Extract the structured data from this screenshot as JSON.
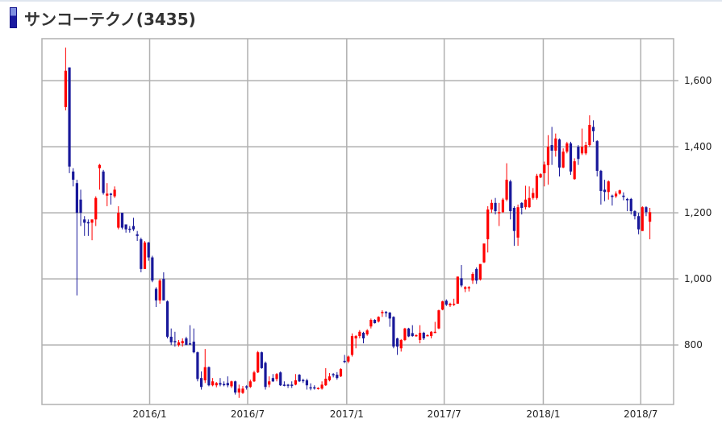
{
  "header": {
    "title": "サンコーテクノ(3435)",
    "icon": "bar-marker-icon"
  },
  "colors": {
    "up": "#ff0000",
    "down": "#18189a",
    "grid": "#b0b0b0"
  },
  "chart_data": {
    "type": "candlestick",
    "title": "サンコーテクノ(3435)",
    "xlabel": "",
    "ylabel": "",
    "interval": "weekly",
    "ylim": [
      620,
      1727
    ],
    "xlim": [
      "2015-06-15",
      "2018-08-31"
    ],
    "grid": true,
    "yaxis_side": "right",
    "y_ticks": [
      800,
      1000,
      1200,
      1400,
      1600
    ],
    "y_tick_labels": [
      "800",
      "1,000",
      "1,200",
      "1,400",
      "1,600"
    ],
    "x_ticks": [
      "2016-01-01",
      "2016-07-01",
      "2017-01-01",
      "2017-07-01",
      "2018-01-01",
      "2018-07-01"
    ],
    "x_tick_labels": [
      "2016/1",
      "2016/7",
      "2017/1",
      "2017/7",
      "2018/1",
      "2018/7"
    ],
    "columns": [
      "date",
      "open",
      "high",
      "low",
      "close"
    ],
    "candles": [
      [
        "2015-07-27",
        1520,
        1700,
        1510,
        1630
      ],
      [
        "2015-08-03",
        1640,
        1640,
        1320,
        1340
      ],
      [
        "2015-08-10",
        1325,
        1335,
        1280,
        1300
      ],
      [
        "2015-08-17",
        1290,
        1300,
        950,
        1200
      ],
      [
        "2015-08-24",
        1240,
        1270,
        1160,
        1200
      ],
      [
        "2015-08-31",
        1180,
        1190,
        1130,
        1170
      ],
      [
        "2015-09-07",
        1172,
        1180,
        1130,
        1168
      ],
      [
        "2015-09-14",
        1170,
        1180,
        1117,
        1180
      ],
      [
        "2015-09-21",
        1180,
        1250,
        1160,
        1245
      ],
      [
        "2015-09-28",
        1335,
        1348,
        1270,
        1345
      ],
      [
        "2015-10-05",
        1325,
        1330,
        1255,
        1260
      ],
      [
        "2015-10-12",
        1252,
        1290,
        1220,
        1258
      ],
      [
        "2015-10-19",
        1258,
        1260,
        1225,
        1255
      ],
      [
        "2015-10-26",
        1250,
        1280,
        1245,
        1270
      ],
      [
        "2015-11-02",
        1155,
        1220,
        1150,
        1200
      ],
      [
        "2015-11-09",
        1200,
        1200,
        1150,
        1155
      ],
      [
        "2015-11-16",
        1165,
        1165,
        1140,
        1150
      ],
      [
        "2015-11-23",
        1152,
        1160,
        1140,
        1150
      ],
      [
        "2015-11-30",
        1160,
        1185,
        1145,
        1150
      ],
      [
        "2015-12-07",
        1135,
        1145,
        1115,
        1130
      ],
      [
        "2015-12-14",
        1120,
        1125,
        1020,
        1030
      ],
      [
        "2015-12-21",
        1030,
        1115,
        1030,
        1110
      ],
      [
        "2015-12-28",
        1110,
        1112,
        1055,
        1065
      ],
      [
        "2016-01-04",
        1065,
        1070,
        990,
        995
      ],
      [
        "2016-01-11",
        970,
        975,
        915,
        935
      ],
      [
        "2016-01-18",
        935,
        1000,
        925,
        995
      ],
      [
        "2016-01-25",
        1000,
        1020,
        935,
        935
      ],
      [
        "2016-02-01",
        932,
        935,
        820,
        825
      ],
      [
        "2016-02-08",
        825,
        850,
        800,
        808
      ],
      [
        "2016-02-15",
        812,
        840,
        795,
        808
      ],
      [
        "2016-02-22",
        800,
        815,
        795,
        808
      ],
      [
        "2016-02-29",
        805,
        820,
        795,
        812
      ],
      [
        "2016-03-07",
        820,
        825,
        800,
        800
      ],
      [
        "2016-03-14",
        805,
        860,
        800,
        803
      ],
      [
        "2016-03-21",
        810,
        850,
        775,
        778
      ],
      [
        "2016-03-28",
        778,
        780,
        690,
        697
      ],
      [
        "2016-04-04",
        700,
        720,
        665,
        673
      ],
      [
        "2016-04-11",
        693,
        788,
        685,
        733
      ],
      [
        "2016-04-18",
        733,
        735,
        675,
        678
      ],
      [
        "2016-04-25",
        678,
        700,
        675,
        690
      ],
      [
        "2016-05-02",
        678,
        688,
        672,
        685
      ],
      [
        "2016-05-09",
        685,
        700,
        675,
        680
      ],
      [
        "2016-05-16",
        682,
        690,
        675,
        680
      ],
      [
        "2016-05-23",
        685,
        705,
        672,
        678
      ],
      [
        "2016-05-30",
        675,
        692,
        670,
        690
      ],
      [
        "2016-06-06",
        690,
        692,
        650,
        656
      ],
      [
        "2016-06-13",
        656,
        680,
        640,
        668
      ],
      [
        "2016-06-20",
        655,
        676,
        652,
        668
      ],
      [
        "2016-06-27",
        675,
        678,
        665,
        673
      ],
      [
        "2016-07-04",
        673,
        695,
        670,
        690
      ],
      [
        "2016-07-11",
        690,
        722,
        688,
        717
      ],
      [
        "2016-07-18",
        717,
        782,
        715,
        778
      ],
      [
        "2016-07-25",
        778,
        780,
        728,
        730
      ],
      [
        "2016-08-01",
        746,
        750,
        665,
        673
      ],
      [
        "2016-08-08",
        680,
        705,
        672,
        690
      ],
      [
        "2016-08-15",
        700,
        712,
        688,
        690
      ],
      [
        "2016-08-22",
        697,
        715,
        690,
        712
      ],
      [
        "2016-08-29",
        717,
        720,
        676,
        678
      ],
      [
        "2016-09-05",
        680,
        690,
        675,
        678
      ],
      [
        "2016-09-12",
        680,
        682,
        670,
        677
      ],
      [
        "2016-09-19",
        680,
        690,
        670,
        678
      ],
      [
        "2016-09-26",
        680,
        712,
        678,
        693
      ],
      [
        "2016-10-03",
        710,
        712,
        688,
        690
      ],
      [
        "2016-10-10",
        694,
        698,
        685,
        693
      ],
      [
        "2016-10-17",
        693,
        698,
        665,
        678
      ],
      [
        "2016-10-24",
        672,
        684,
        663,
        671
      ],
      [
        "2016-10-31",
        672,
        678,
        665,
        671
      ],
      [
        "2016-11-07",
        668,
        672,
        665,
        670
      ],
      [
        "2016-11-14",
        668,
        690,
        665,
        680
      ],
      [
        "2016-11-21",
        678,
        730,
        676,
        698
      ],
      [
        "2016-11-28",
        693,
        715,
        690,
        705
      ],
      [
        "2016-12-05",
        712,
        715,
        702,
        710
      ],
      [
        "2016-12-12",
        710,
        718,
        695,
        700
      ],
      [
        "2016-12-19",
        705,
        730,
        703,
        727
      ],
      [
        "2016-12-26",
        752,
        770,
        745,
        750
      ],
      [
        "2017-01-02",
        750,
        768,
        745,
        765
      ],
      [
        "2017-01-09",
        770,
        835,
        765,
        827
      ],
      [
        "2017-01-16",
        820,
        830,
        790,
        827
      ],
      [
        "2017-01-23",
        827,
        845,
        820,
        840
      ],
      [
        "2017-01-30",
        837,
        840,
        805,
        820
      ],
      [
        "2017-02-06",
        832,
        848,
        828,
        844
      ],
      [
        "2017-02-13",
        856,
        880,
        850,
        876
      ],
      [
        "2017-02-20",
        876,
        878,
        865,
        866
      ],
      [
        "2017-02-27",
        871,
        887,
        868,
        885
      ],
      [
        "2017-03-06",
        900,
        905,
        885,
        900
      ],
      [
        "2017-03-13",
        900,
        903,
        885,
        898
      ],
      [
        "2017-03-20",
        898,
        900,
        855,
        880
      ],
      [
        "2017-03-27",
        885,
        887,
        790,
        795
      ],
      [
        "2017-04-03",
        820,
        822,
        770,
        795
      ],
      [
        "2017-04-10",
        790,
        818,
        780,
        815
      ],
      [
        "2017-04-17",
        815,
        852,
        812,
        850
      ],
      [
        "2017-04-24",
        850,
        852,
        824,
        826
      ],
      [
        "2017-05-01",
        836,
        860,
        825,
        827
      ],
      [
        "2017-05-08",
        830,
        832,
        825,
        830
      ],
      [
        "2017-05-15",
        815,
        860,
        805,
        837
      ],
      [
        "2017-05-22",
        837,
        840,
        815,
        820
      ],
      [
        "2017-05-29",
        830,
        832,
        826,
        830
      ],
      [
        "2017-06-05",
        827,
        842,
        820,
        840
      ],
      [
        "2017-06-12",
        838,
        870,
        836,
        840
      ],
      [
        "2017-06-19",
        850,
        907,
        848,
        905
      ],
      [
        "2017-06-26",
        907,
        934,
        905,
        932
      ],
      [
        "2017-07-03",
        934,
        938,
        918,
        922
      ],
      [
        "2017-07-10",
        920,
        928,
        915,
        925
      ],
      [
        "2017-07-17",
        922,
        940,
        918,
        925
      ],
      [
        "2017-07-24",
        925,
        1007,
        925,
        1007
      ],
      [
        "2017-07-31",
        1002,
        1042,
        975,
        980
      ],
      [
        "2017-08-07",
        970,
        978,
        960,
        975
      ],
      [
        "2017-08-14",
        972,
        978,
        962,
        975
      ],
      [
        "2017-08-21",
        995,
        1020,
        985,
        1015
      ],
      [
        "2017-08-28",
        1030,
        1035,
        985,
        995
      ],
      [
        "2017-09-04",
        998,
        1045,
        995,
        1045
      ],
      [
        "2017-09-11",
        1050,
        1107,
        1048,
        1107
      ],
      [
        "2017-09-18",
        1120,
        1220,
        1080,
        1210
      ],
      [
        "2017-09-25",
        1210,
        1240,
        1200,
        1230
      ],
      [
        "2017-10-02",
        1230,
        1245,
        1195,
        1205
      ],
      [
        "2017-10-09",
        1200,
        1230,
        1160,
        1202
      ],
      [
        "2017-10-16",
        1202,
        1245,
        1200,
        1240
      ],
      [
        "2017-10-23",
        1240,
        1350,
        1235,
        1300
      ],
      [
        "2017-10-30",
        1295,
        1300,
        1180,
        1205
      ],
      [
        "2017-11-06",
        1215,
        1220,
        1100,
        1145
      ],
      [
        "2017-11-13",
        1125,
        1225,
        1100,
        1217
      ],
      [
        "2017-11-20",
        1230,
        1232,
        1195,
        1215
      ],
      [
        "2017-11-27",
        1217,
        1282,
        1210,
        1240
      ],
      [
        "2017-12-04",
        1217,
        1280,
        1215,
        1245
      ],
      [
        "2017-12-11",
        1245,
        1275,
        1240,
        1260
      ],
      [
        "2017-12-18",
        1245,
        1318,
        1240,
        1312
      ],
      [
        "2017-12-25",
        1307,
        1320,
        1305,
        1317
      ],
      [
        "2018-01-01",
        1320,
        1355,
        1280,
        1346
      ],
      [
        "2018-01-08",
        1344,
        1435,
        1285,
        1400
      ],
      [
        "2018-01-15",
        1405,
        1460,
        1345,
        1388
      ],
      [
        "2018-01-22",
        1388,
        1440,
        1370,
        1425
      ],
      [
        "2018-01-29",
        1422,
        1425,
        1310,
        1337
      ],
      [
        "2018-02-05",
        1337,
        1395,
        1335,
        1385
      ],
      [
        "2018-02-12",
        1385,
        1415,
        1380,
        1410
      ],
      [
        "2018-02-19",
        1410,
        1415,
        1315,
        1325
      ],
      [
        "2018-02-26",
        1302,
        1365,
        1300,
        1356
      ],
      [
        "2018-03-05",
        1400,
        1405,
        1345,
        1363
      ],
      [
        "2018-03-12",
        1380,
        1455,
        1375,
        1400
      ],
      [
        "2018-03-19",
        1380,
        1415,
        1375,
        1405
      ],
      [
        "2018-03-26",
        1405,
        1495,
        1400,
        1466
      ],
      [
        "2018-04-02",
        1460,
        1480,
        1415,
        1447
      ],
      [
        "2018-04-09",
        1417,
        1420,
        1310,
        1327
      ],
      [
        "2018-04-16",
        1327,
        1330,
        1225,
        1266
      ],
      [
        "2018-04-23",
        1270,
        1300,
        1235,
        1263
      ],
      [
        "2018-04-30",
        1263,
        1298,
        1240,
        1295
      ],
      [
        "2018-05-07",
        1252,
        1255,
        1222,
        1248
      ],
      [
        "2018-05-14",
        1250,
        1265,
        1245,
        1258
      ],
      [
        "2018-05-21",
        1258,
        1270,
        1255,
        1268
      ],
      [
        "2018-05-28",
        1252,
        1262,
        1238,
        1248
      ],
      [
        "2018-06-04",
        1242,
        1245,
        1205,
        1238
      ],
      [
        "2018-06-11",
        1242,
        1245,
        1195,
        1205
      ],
      [
        "2018-06-18",
        1205,
        1208,
        1180,
        1190
      ],
      [
        "2018-06-25",
        1190,
        1200,
        1135,
        1150
      ],
      [
        "2018-07-02",
        1145,
        1220,
        1145,
        1217
      ],
      [
        "2018-07-09",
        1217,
        1220,
        1190,
        1202
      ],
      [
        "2018-07-16",
        1173,
        1215,
        1120,
        1202
      ]
    ]
  }
}
